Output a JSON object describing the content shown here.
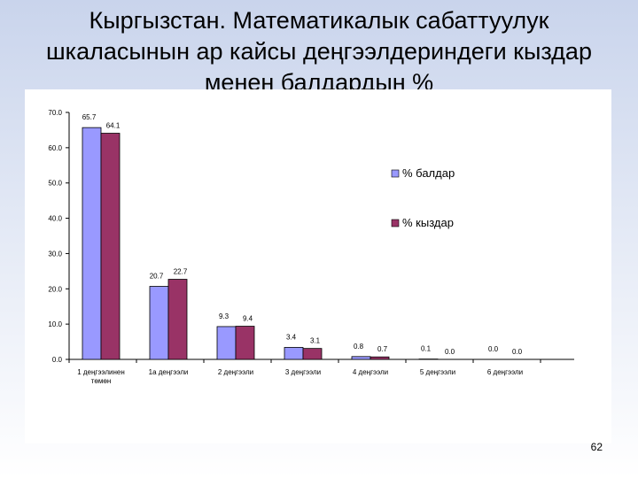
{
  "slide": {
    "title_lines": [
      "Кыргызстан. Математикалык сабаттуулук",
      "шкаласынын ар кайсы деңгээлдериндеги кыздар",
      "менен балдардын %"
    ],
    "page_number": "62"
  },
  "colors": {
    "boys": "#9999ff",
    "girls": "#993366"
  },
  "chart_data": {
    "type": "bar",
    "title": "",
    "xlabel": "",
    "ylabel": "",
    "ylim": [
      0,
      70
    ],
    "y_ticks": [
      "0.0",
      "10.0",
      "20.0",
      "30.0",
      "40.0",
      "50.0",
      "60.0",
      "70.0"
    ],
    "grid": false,
    "legend_position": "right",
    "categories": [
      [
        "1 деңгээлинен",
        "төмөн"
      ],
      [
        "1а деңгээли"
      ],
      [
        "2 деңгээли"
      ],
      [
        "3 деңгээли"
      ],
      [
        "4 деңгээли"
      ],
      [
        "5 деңгээли"
      ],
      [
        "6 деңгээли"
      ]
    ],
    "series": [
      {
        "name": "%  балдар",
        "values": [
          65.7,
          20.7,
          9.3,
          3.4,
          0.8,
          0.1,
          0.0
        ],
        "labels": [
          "65.7",
          "20.7",
          "9.3",
          "3.4",
          "0.8",
          "0.1",
          "0.0"
        ]
      },
      {
        "name": "%  кыздар",
        "values": [
          64.1,
          22.7,
          9.4,
          3.1,
          0.7,
          0.0,
          0.0
        ],
        "labels": [
          "64.1",
          "22.7",
          "9.4",
          "3.1",
          "0.7",
          "0.0",
          "0.0"
        ]
      }
    ]
  }
}
